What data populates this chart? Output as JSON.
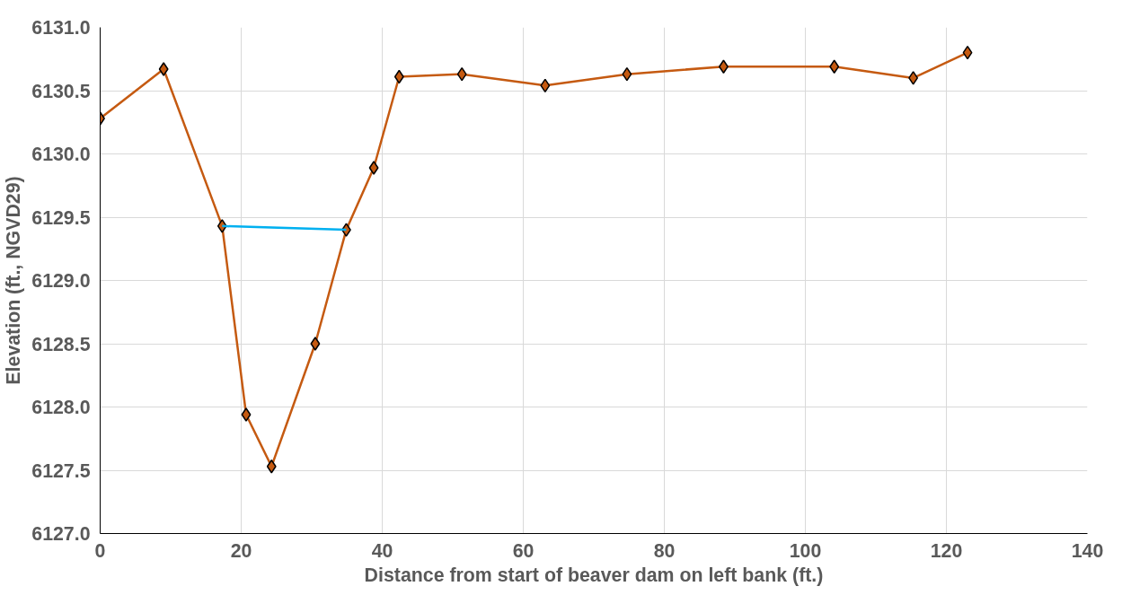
{
  "chart_data": {
    "type": "line",
    "xlabel": "Distance from start of beaver dam on left bank (ft.)",
    "ylabel": "Elevation (ft., NGVD29)",
    "series": [
      {
        "color": "#c55a11",
        "marker": "diamond",
        "x": [
          0,
          9.0,
          17.3,
          20.7,
          24.3,
          30.5,
          34.9,
          38.8,
          42.4,
          51.3,
          63.1,
          74.7,
          88.4,
          104.1,
          115.3,
          123.0
        ],
        "values": [
          6130.28,
          6130.67,
          6129.43,
          6127.94,
          6127.53,
          6128.5,
          6129.4,
          6129.89,
          6130.61,
          6130.63,
          6130.54,
          6130.63,
          6130.69,
          6130.69,
          6130.6,
          6130.8
        ]
      },
      {
        "color": "#00b0f0",
        "marker": "none",
        "x": [
          17.3,
          34.9
        ],
        "values": [
          6129.43,
          6129.4
        ]
      }
    ],
    "xlim": [
      0,
      140
    ],
    "xticks": [
      0,
      20,
      40,
      60,
      80,
      100,
      120,
      140
    ],
    "ylim": [
      6127.0,
      6131.0
    ],
    "yticks": [
      {
        "value": 6127,
        "label": "6127.0"
      },
      {
        "value": 6127.5,
        "label": "6127.5"
      },
      {
        "value": 6128,
        "label": "6128.0"
      },
      {
        "value": 6128.5,
        "label": "6128.5"
      },
      {
        "value": 6129,
        "label": "6129.0"
      },
      {
        "value": 6129.5,
        "label": "6129.5"
      },
      {
        "value": 6130,
        "label": "6130.0"
      },
      {
        "value": 6130.5,
        "label": "6130.5"
      },
      {
        "value": 6131,
        "label": "6131.0"
      }
    ],
    "grid": true
  }
}
